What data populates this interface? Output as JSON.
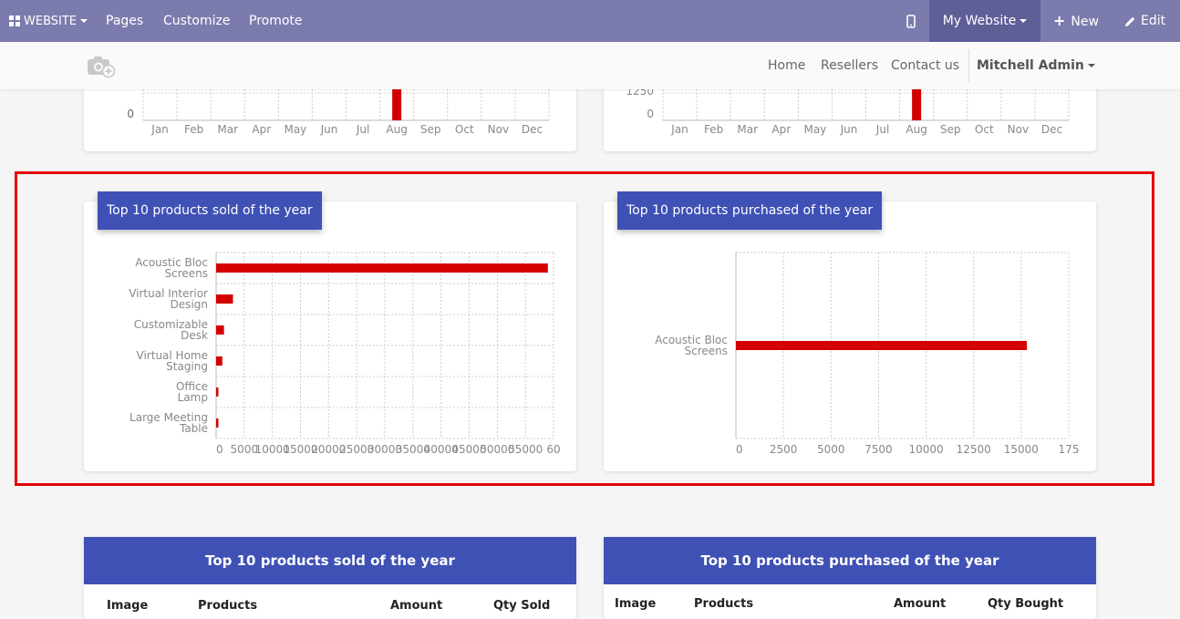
{
  "topbar": {
    "website_menu": "WEBSITE",
    "pages": "Pages",
    "customize": "Customize",
    "promote": "Promote",
    "my_website": "My Website",
    "new": "New",
    "edit": "Edit"
  },
  "navbar": {
    "home": "Home",
    "resellers": "Resellers",
    "contact": "Contact us",
    "user": "Mitchell Admin"
  },
  "months": [
    "Jan",
    "Feb",
    "Mar",
    "Apr",
    "May",
    "Jun",
    "Jul",
    "Aug",
    "Sep",
    "Oct",
    "Nov",
    "Dec"
  ],
  "colors": {
    "bar": "#d40000",
    "accent": "#3f51b5",
    "topbar": "#7c7bad",
    "highlight": "#e30000"
  },
  "top_charts": {
    "left": {
      "ytick": "0",
      "highlighted_month": "Aug"
    },
    "right": {
      "yticks": [
        "1250",
        "0"
      ],
      "highlighted_month": "Aug"
    }
  },
  "chart_data": [
    {
      "type": "bar",
      "orientation": "horizontal",
      "title": "Top 10 products sold of the year",
      "categories": [
        "Acoustic Bloc Screens",
        "Virtual Interior Design",
        "Customizable Desk",
        "Virtual Home Staging",
        "Office Lamp",
        "Large Meeting Table"
      ],
      "values": [
        59000,
        3000,
        1400,
        1100,
        400,
        400
      ],
      "xticks": [
        "0",
        "5000",
        "10000",
        "15000",
        "20000",
        "25000",
        "30000",
        "35000",
        "40000",
        "45000",
        "50000",
        "55000",
        "60"
      ],
      "xlim": [
        0,
        60000
      ],
      "grid": true
    },
    {
      "type": "bar",
      "orientation": "horizontal",
      "title": "Top 10 products purchased of the year",
      "categories": [
        "Acoustic Bloc Screens"
      ],
      "values": [
        15300
      ],
      "xticks": [
        "0",
        "2500",
        "5000",
        "7500",
        "10000",
        "12500",
        "15000",
        "175"
      ],
      "xlim": [
        0,
        17500
      ],
      "grid": true
    }
  ],
  "tables": {
    "sold": {
      "title": "Top 10 products sold of the year",
      "columns": [
        "Image",
        "Products",
        "Amount",
        "Qty Sold"
      ]
    },
    "purchased": {
      "title": "Top 10 products purchased of the year",
      "columns": [
        "Image",
        "Products",
        "Amount",
        "Qty Bought"
      ]
    }
  }
}
